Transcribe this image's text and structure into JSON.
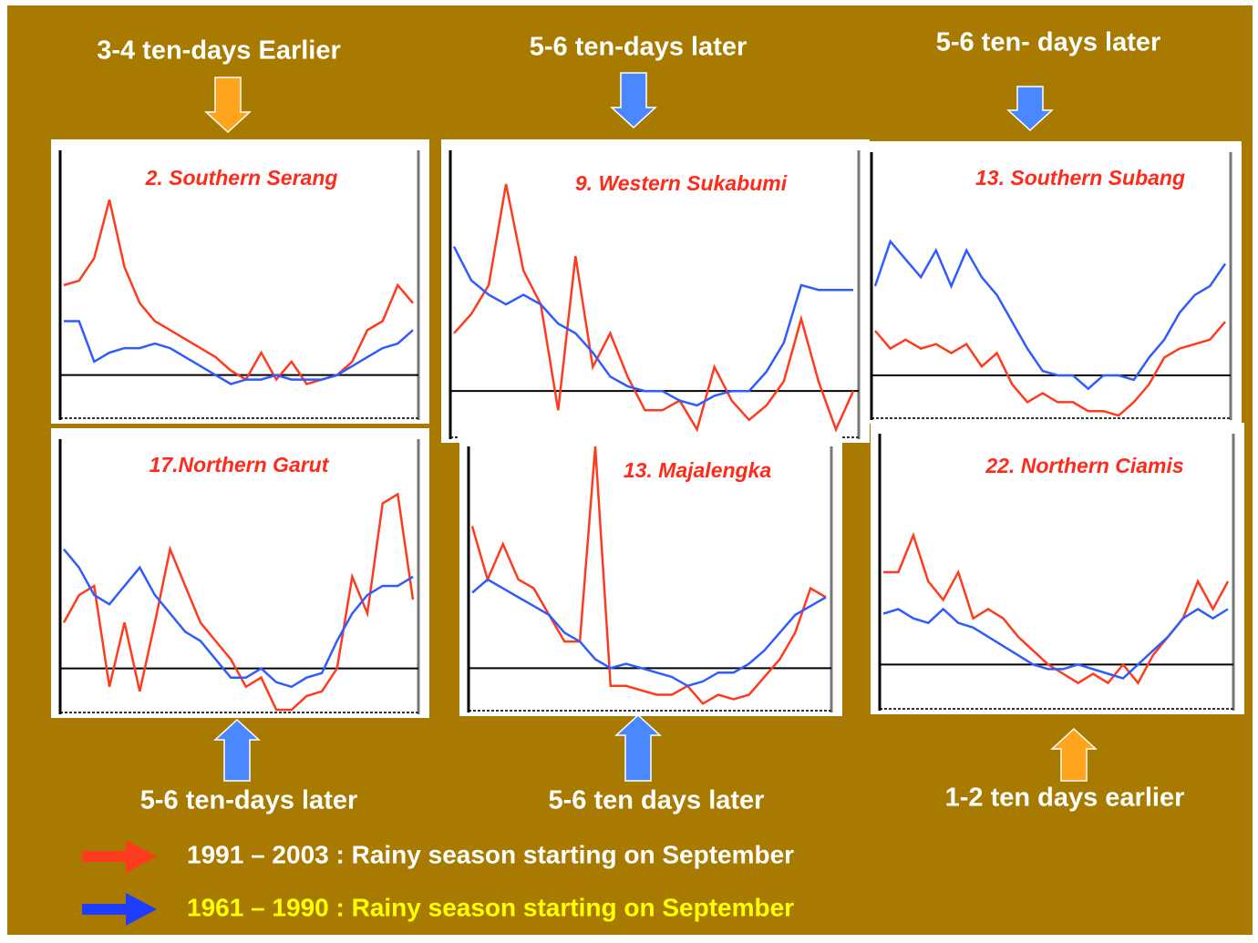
{
  "chart_data": [
    {
      "type": "line",
      "title": "2. Southern Serang",
      "label_above": "3-4 ten-days Earlier",
      "label_below": "",
      "ylim": [
        -1,
        5
      ],
      "hline": 0,
      "series": [
        {
          "color": "#ff3b1f",
          "values": [
            2.0,
            2.1,
            2.6,
            3.9,
            2.4,
            1.6,
            1.2,
            1.0,
            0.8,
            0.6,
            0.4,
            0.1,
            -0.1,
            0.5,
            -0.1,
            0.3,
            -0.2,
            -0.1,
            0.0,
            0.3,
            1.0,
            1.2,
            2.0,
            1.6
          ]
        },
        {
          "color": "#2f5cff",
          "values": [
            1.2,
            1.2,
            0.3,
            0.5,
            0.6,
            0.6,
            0.7,
            0.6,
            0.4,
            0.2,
            0.0,
            -0.2,
            -0.1,
            -0.1,
            0.0,
            -0.1,
            -0.1,
            -0.1,
            0.0,
            0.2,
            0.4,
            0.6,
            0.7,
            1.0
          ]
        }
      ]
    },
    {
      "type": "line",
      "title": "9. Western Sukabumi",
      "label_above": "5-6 ten-days later",
      "ylim": [
        -1,
        5
      ],
      "hline": 0,
      "series": [
        {
          "color": "#ff3b1f",
          "values": [
            1.2,
            1.6,
            2.2,
            4.3,
            2.5,
            1.8,
            -0.4,
            2.8,
            0.5,
            1.2,
            0.3,
            -0.4,
            -0.4,
            -0.2,
            -0.8,
            0.5,
            -0.2,
            -0.6,
            -0.3,
            0.2,
            1.5,
            0.2,
            -0.8,
            0.0
          ]
        },
        {
          "color": "#2f5cff",
          "values": [
            3.0,
            2.3,
            2.0,
            1.8,
            2.0,
            1.8,
            1.4,
            1.2,
            0.8,
            0.3,
            0.1,
            0.0,
            0.0,
            -0.2,
            -0.3,
            -0.1,
            0.0,
            0.0,
            0.4,
            1.0,
            2.2,
            2.1,
            2.1,
            2.1
          ]
        }
      ]
    },
    {
      "type": "line",
      "title": "13. Southern  Subang",
      "label_above": "5-6 ten- days later",
      "ylim": [
        -1,
        5
      ],
      "hline": 0,
      "series": [
        {
          "color": "#ff3b1f",
          "values": [
            1.0,
            0.6,
            0.8,
            0.6,
            0.7,
            0.5,
            0.7,
            0.2,
            0.5,
            -0.2,
            -0.6,
            -0.4,
            -0.6,
            -0.6,
            -0.8,
            -0.8,
            -0.9,
            -0.6,
            -0.2,
            0.4,
            0.6,
            0.7,
            0.8,
            1.2
          ]
        },
        {
          "color": "#2f5cff",
          "values": [
            2.0,
            3.0,
            2.6,
            2.2,
            2.8,
            2.0,
            2.8,
            2.2,
            1.8,
            1.2,
            0.6,
            0.1,
            0.0,
            0.0,
            -0.3,
            0.0,
            0.0,
            -0.1,
            0.4,
            0.8,
            1.4,
            1.8,
            2.0,
            2.5
          ]
        }
      ]
    },
    {
      "type": "line",
      "title": "17.Northern Garut",
      "label_below": "5-6 ten-days later",
      "ylim": [
        -1,
        5
      ],
      "hline": 0,
      "series": [
        {
          "color": "#ff3b1f",
          "values": [
            1.0,
            1.6,
            1.8,
            -0.4,
            1.0,
            -0.5,
            1.0,
            2.6,
            1.8,
            1.0,
            0.6,
            0.2,
            -0.4,
            -0.2,
            -0.9,
            -0.9,
            -0.6,
            -0.5,
            0.0,
            2.0,
            1.2,
            3.6,
            3.8,
            1.5
          ]
        },
        {
          "color": "#2f5cff",
          "values": [
            2.6,
            2.2,
            1.6,
            1.4,
            1.8,
            2.2,
            1.6,
            1.2,
            0.8,
            0.6,
            0.2,
            -0.2,
            -0.2,
            0.0,
            -0.3,
            -0.4,
            -0.2,
            -0.1,
            0.6,
            1.2,
            1.6,
            1.8,
            1.8,
            2.0
          ]
        }
      ]
    },
    {
      "type": "line",
      "title": "13. Majalengka",
      "label_below": "5-6 ten days later",
      "ylim": [
        -1,
        5
      ],
      "hline": 0,
      "series": [
        {
          "color": "#ff3b1f",
          "values": [
            3.2,
            2.0,
            2.8,
            2.0,
            1.8,
            1.2,
            0.6,
            0.6,
            5.0,
            -0.4,
            -0.4,
            -0.5,
            -0.6,
            -0.6,
            -0.4,
            -0.8,
            -0.6,
            -0.7,
            -0.6,
            -0.2,
            0.2,
            0.8,
            1.8,
            1.6
          ]
        },
        {
          "color": "#2f5cff",
          "values": [
            1.7,
            2.0,
            1.8,
            1.6,
            1.4,
            1.2,
            0.8,
            0.6,
            0.2,
            0.0,
            0.1,
            0.0,
            -0.1,
            -0.2,
            -0.4,
            -0.3,
            -0.1,
            -0.1,
            0.1,
            0.4,
            0.8,
            1.2,
            1.4,
            1.6
          ]
        }
      ]
    },
    {
      "type": "line",
      "title": "22. Northern Ciamis",
      "label_below": "1-2 ten days earlier",
      "ylim": [
        -1,
        5
      ],
      "hline": 0,
      "series": [
        {
          "color": "#ff3b1f",
          "values": [
            2.0,
            2.0,
            2.8,
            1.8,
            1.4,
            2.0,
            1.0,
            1.2,
            1.0,
            0.6,
            0.3,
            0.0,
            -0.2,
            -0.4,
            -0.2,
            -0.4,
            0.0,
            -0.4,
            0.2,
            0.6,
            1.0,
            1.8,
            1.2,
            1.8
          ]
        },
        {
          "color": "#2f5cff",
          "values": [
            1.1,
            1.2,
            1.0,
            0.9,
            1.2,
            0.9,
            0.8,
            0.6,
            0.4,
            0.2,
            0.0,
            -0.1,
            -0.1,
            0.0,
            -0.1,
            -0.2,
            -0.3,
            0.0,
            0.3,
            0.6,
            1.0,
            1.2,
            1.0,
            1.2
          ]
        }
      ]
    }
  ],
  "legend": [
    {
      "label": "1991 – 2003 : Rainy season starting on September",
      "color": "#ff3b1f",
      "text_color": "#ffffff"
    },
    {
      "label": "1961 – 1990 : Rainy season starting on September",
      "color": "#1f3cff",
      "text_color": "#ffff00"
    }
  ]
}
